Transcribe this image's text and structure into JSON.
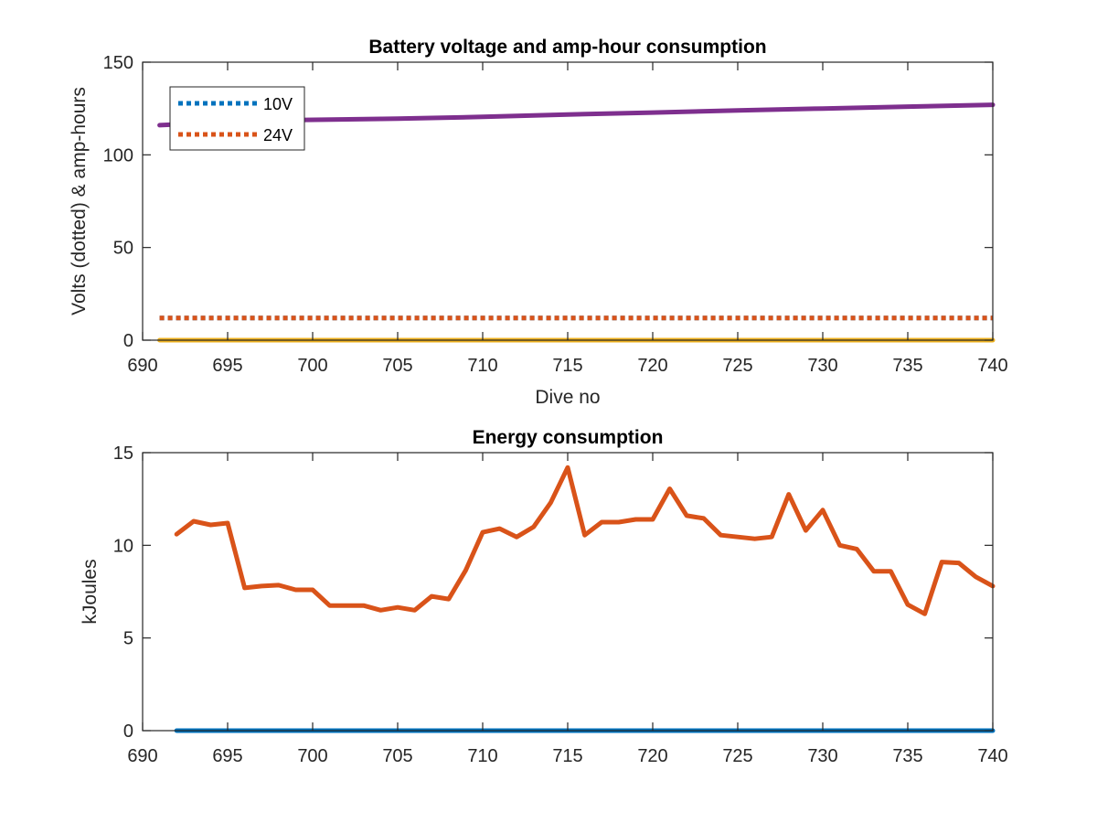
{
  "chart_data": [
    {
      "type": "line",
      "title": "Battery voltage and amp-hour consumption",
      "xlabel": "Dive no",
      "ylabel": "Volts (dotted) & amp-hours",
      "xlim": [
        690,
        740
      ],
      "ylim": [
        0,
        150
      ],
      "xticks": [
        690,
        695,
        700,
        705,
        710,
        715,
        720,
        725,
        730,
        735,
        740
      ],
      "yticks": [
        0,
        50,
        100,
        150
      ],
      "grid": false,
      "legend": {
        "placement": "top-left",
        "entries": [
          "10V",
          "24V"
        ]
      },
      "series": [
        {
          "name": "10V",
          "style": "dotted",
          "color": "#0072BD",
          "x": [
            691,
            740
          ],
          "y": [
            12,
            12
          ]
        },
        {
          "name": "24V",
          "style": "dotted",
          "color": "#D95319",
          "x": [
            691,
            740
          ],
          "y": [
            12,
            12
          ]
        },
        {
          "style": "solid",
          "color": "#EDB120",
          "x": [
            691,
            740
          ],
          "y": [
            0,
            0
          ]
        },
        {
          "style": "solid",
          "color": "#7E2F8E",
          "x": [
            691,
            697,
            705,
            710,
            715,
            720,
            725,
            730,
            735,
            740
          ],
          "y": [
            116,
            118.5,
            119.5,
            120.5,
            121.8,
            122.8,
            124,
            125,
            126,
            127
          ]
        }
      ]
    },
    {
      "type": "line",
      "title": "Energy consumption",
      "xlabel": "",
      "ylabel": "kJoules",
      "xlim": [
        690,
        740
      ],
      "ylim": [
        0,
        15
      ],
      "xticks": [
        690,
        695,
        700,
        705,
        710,
        715,
        720,
        725,
        730,
        735,
        740
      ],
      "yticks": [
        0,
        5,
        10,
        15
      ],
      "grid": false,
      "series": [
        {
          "style": "solid",
          "color": "#D95319",
          "x": [
            692,
            693,
            694,
            695,
            696,
            697,
            698,
            699,
            700,
            701,
            702,
            703,
            704,
            705,
            706,
            707,
            708,
            709,
            710,
            711,
            712,
            713,
            714,
            715,
            716,
            717,
            718,
            719,
            720,
            721,
            722,
            723,
            724,
            725,
            726,
            727,
            728,
            729,
            730,
            731,
            732,
            733,
            734,
            735,
            736,
            737,
            738,
            739,
            740
          ],
          "y": [
            10.6,
            11.3,
            11.1,
            11.2,
            7.7,
            7.8,
            7.85,
            7.6,
            7.6,
            6.75,
            6.75,
            6.75,
            6.5,
            6.65,
            6.5,
            7.25,
            7.1,
            8.65,
            10.7,
            10.9,
            10.45,
            11.0,
            12.3,
            14.2,
            10.55,
            11.25,
            11.25,
            11.4,
            11.4,
            13.05,
            11.6,
            11.45,
            10.55,
            10.45,
            10.35,
            10.45,
            12.75,
            10.8,
            11.9,
            10.0,
            9.8,
            8.6,
            8.6,
            6.8,
            6.3,
            9.1,
            9.05,
            8.3,
            7.8
          ]
        },
        {
          "style": "solid",
          "color": "#0072BD",
          "x": [
            692,
            740
          ],
          "y": [
            0,
            0
          ]
        }
      ]
    }
  ]
}
